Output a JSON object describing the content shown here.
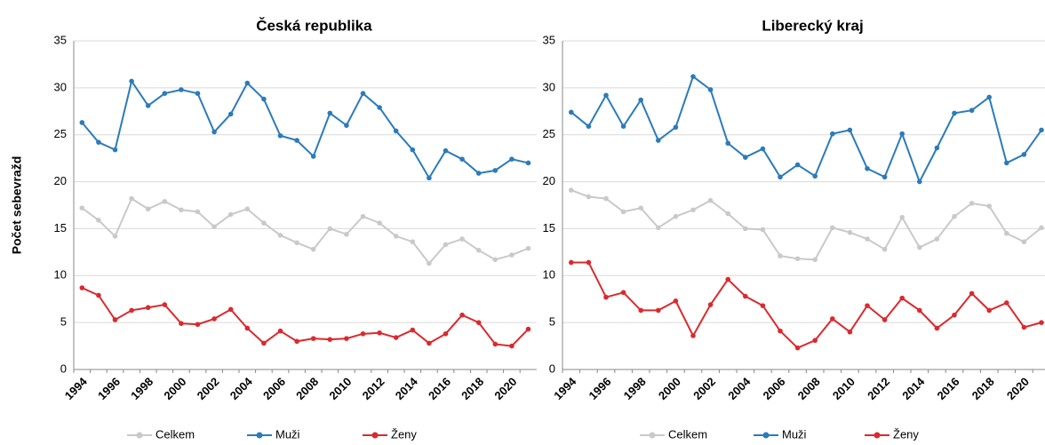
{
  "chart_data": [
    {
      "type": "line",
      "title": "Česká republika",
      "y_label": "Počet sebevražd",
      "categories": [
        "1994",
        null,
        "1996",
        null,
        "1998",
        null,
        "2000",
        null,
        "2002",
        null,
        "2004",
        null,
        "2006",
        null,
        "2008",
        null,
        "2010",
        null,
        "2012",
        null,
        "2014",
        null,
        "2016",
        null,
        "2018",
        null,
        "2020",
        null
      ],
      "series": [
        {
          "name": "Celkem",
          "color": "#c9c9c9",
          "values": [
            17.2,
            15.9,
            14.2,
            18.2,
            17.1,
            17.9,
            17.0,
            16.8,
            15.2,
            16.5,
            17.1,
            15.6,
            14.3,
            13.5,
            12.8,
            15.0,
            14.4,
            16.3,
            15.6,
            14.2,
            13.6,
            11.3,
            13.3,
            13.9,
            12.7,
            11.7,
            12.2,
            12.9
          ]
        },
        {
          "name": "Muži",
          "color": "#2b7bba",
          "values": [
            26.3,
            24.2,
            23.4,
            30.7,
            28.1,
            29.4,
            29.8,
            29.4,
            25.3,
            27.2,
            30.5,
            28.8,
            24.9,
            24.4,
            22.7,
            27.3,
            26.0,
            29.4,
            27.9,
            25.4,
            23.4,
            20.4,
            23.3,
            22.4,
            20.9,
            21.2,
            22.4,
            22.0
          ]
        },
        {
          "name": "Ženy",
          "color": "#d92a2e",
          "values": [
            8.7,
            7.9,
            5.3,
            6.3,
            6.6,
            6.9,
            4.9,
            4.8,
            5.4,
            6.4,
            4.4,
            2.8,
            4.1,
            3.0,
            3.3,
            3.2,
            3.3,
            3.8,
            3.9,
            3.4,
            4.2,
            2.8,
            3.8,
            5.8,
            5.0,
            2.7,
            2.5,
            4.3
          ]
        }
      ],
      "ylim": [
        0,
        35
      ],
      "yticks": [
        0,
        5,
        10,
        15,
        20,
        25,
        30,
        35
      ],
      "grid": true,
      "legend": "bottom"
    },
    {
      "type": "line",
      "title": "Liberecký kraj",
      "categories": [
        "1994",
        null,
        "1996",
        null,
        "1998",
        null,
        "2000",
        null,
        "2002",
        null,
        "2004",
        null,
        "2006",
        null,
        "2008",
        null,
        "2010",
        null,
        "2012",
        null,
        "2014",
        null,
        "2016",
        null,
        "2018",
        null,
        "2020",
        null
      ],
      "series": [
        {
          "name": "Celkem",
          "color": "#c9c9c9",
          "values": [
            19.1,
            18.4,
            18.2,
            16.8,
            17.2,
            15.1,
            16.3,
            17.0,
            18.0,
            16.6,
            15.0,
            14.9,
            12.1,
            11.8,
            11.7,
            15.1,
            14.6,
            13.9,
            12.8,
            16.2,
            13.0,
            13.9,
            16.3,
            17.7,
            17.4,
            14.5,
            13.6,
            15.1
          ]
        },
        {
          "name": "Muži",
          "color": "#2b7bba",
          "values": [
            27.4,
            25.9,
            29.2,
            25.9,
            28.7,
            24.4,
            25.8,
            31.2,
            29.8,
            24.1,
            22.6,
            23.5,
            20.5,
            21.8,
            20.6,
            25.1,
            25.5,
            21.4,
            20.5,
            25.1,
            20.0,
            23.6,
            27.3,
            27.6,
            29.0,
            22.0,
            22.9,
            25.5
          ]
        },
        {
          "name": "Ženy",
          "color": "#d92a2e",
          "values": [
            11.4,
            11.4,
            7.7,
            8.2,
            6.3,
            6.3,
            7.3,
            3.6,
            6.9,
            9.6,
            7.8,
            6.8,
            4.1,
            2.3,
            3.1,
            5.4,
            4.0,
            6.8,
            5.3,
            7.6,
            6.3,
            4.4,
            5.8,
            8.1,
            6.3,
            7.1,
            4.5,
            5.0
          ]
        }
      ],
      "ylim": [
        0,
        35
      ],
      "yticks": [
        0,
        5,
        10,
        15,
        20,
        25,
        30,
        35
      ],
      "grid": true,
      "legend": "bottom"
    }
  ]
}
